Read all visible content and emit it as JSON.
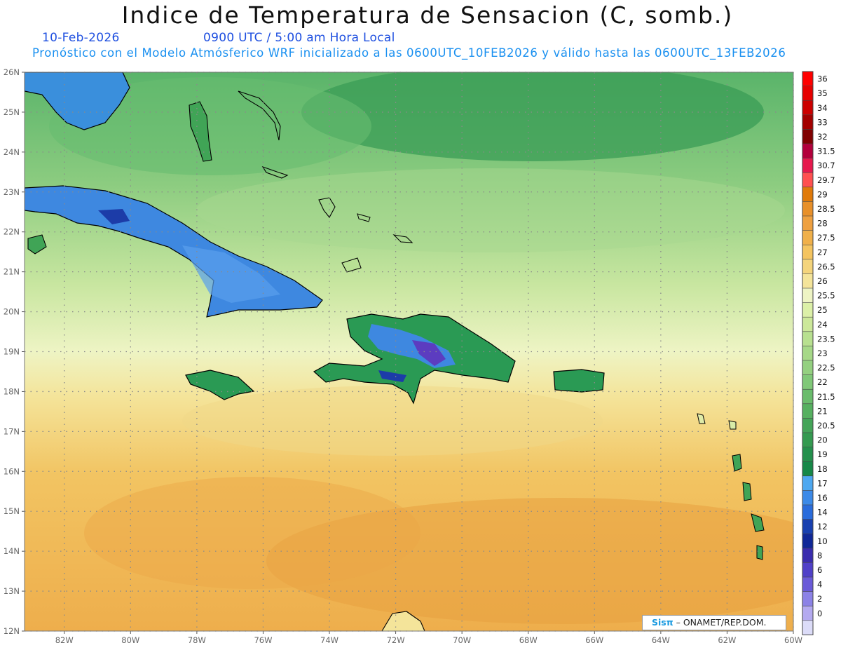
{
  "title": "Indice de Temperatura de Sensacion (C, somb.)",
  "date": "10-Feb-2026",
  "time": "0900 UTC / 5:00 am Hora Local",
  "model_line": "Pronóstico con el Modelo Atmósferico WRF inicializado a las 0600UTC_10FEB2026 y válido hasta las  0600UTC_13FEB2026",
  "credit": {
    "brand": "Sisπ",
    "org": " – ONAMET/REP.DOM."
  },
  "map": {
    "lon_range": [
      -83.2,
      -60
    ],
    "lat_range": [
      12,
      26
    ],
    "lat_ticks": [
      "12N",
      "13N",
      "14N",
      "15N",
      "16N",
      "17N",
      "18N",
      "19N",
      "20N",
      "21N",
      "22N",
      "23N",
      "24N",
      "25N",
      "26N"
    ],
    "lon_ticks": [
      "82W",
      "80W",
      "78W",
      "76W",
      "74W",
      "72W",
      "70W",
      "68W",
      "66W",
      "64W",
      "62W",
      "60W"
    ],
    "grid": "dotted"
  },
  "colorbar": {
    "labels": [
      "36",
      "35",
      "34",
      "33",
      "32",
      "31.5",
      "30.7",
      "29.7",
      "29",
      "28.5",
      "28",
      "27.5",
      "27",
      "26.5",
      "26",
      "25.5",
      "25",
      "24",
      "23.5",
      "23",
      "22.5",
      "22",
      "21.5",
      "21",
      "20.5",
      "20",
      "19",
      "18",
      "17",
      "16",
      "14",
      "12",
      "10",
      "8",
      "6",
      "4",
      "2",
      "0"
    ],
    "colors": [
      "#ff0000",
      "#e60000",
      "#cc0000",
      "#a30000",
      "#800000",
      "#b3003c",
      "#e6194d",
      "#ff5050",
      "#e07a0a",
      "#e8902a",
      "#eea040",
      "#f0b04a",
      "#f4c460",
      "#f4d47c",
      "#f4e49a",
      "#eef4c4",
      "#dcf0a8",
      "#cce89a",
      "#b8e090",
      "#a6d888",
      "#94d080",
      "#80c878",
      "#6abc6c",
      "#56b060",
      "#44a458",
      "#349a50",
      "#24904c",
      "#168848",
      "#4ea8f0",
      "#3c8ae8",
      "#2a6cdc",
      "#1840b0",
      "#102898",
      "#3a2cae",
      "#5040c8",
      "#6a5ad8",
      "#8c82e6",
      "#b4aaf0"
    ],
    "bottom_color": "#dcdcf8"
  }
}
